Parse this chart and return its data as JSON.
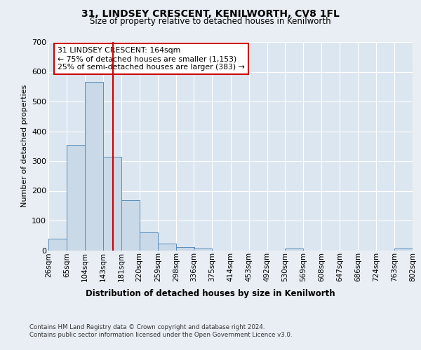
{
  "title1": "31, LINDSEY CRESCENT, KENILWORTH, CV8 1FL",
  "title2": "Size of property relative to detached houses in Kenilworth",
  "xlabel": "Distribution of detached houses by size in Kenilworth",
  "ylabel": "Number of detached properties",
  "footer1": "Contains HM Land Registry data © Crown copyright and database right 2024.",
  "footer2": "Contains public sector information licensed under the Open Government Licence v3.0.",
  "annotation_line1": "31 LINDSEY CRESCENT: 164sqm",
  "annotation_line2": "← 75% of detached houses are smaller (1,153)",
  "annotation_line3": "25% of semi-detached houses are larger (383) →",
  "bar_color": "#c9d9e8",
  "bar_edge_color": "#5b8db8",
  "red_line_x": 164,
  "bin_edges": [
    26,
    65,
    104,
    143,
    181,
    220,
    259,
    298,
    336,
    375,
    414,
    453,
    492,
    530,
    569,
    608,
    647,
    686,
    724,
    763,
    802
  ],
  "bin_labels": [
    "26sqm",
    "65sqm",
    "104sqm",
    "143sqm",
    "181sqm",
    "220sqm",
    "259sqm",
    "298sqm",
    "336sqm",
    "375sqm",
    "414sqm",
    "453sqm",
    "492sqm",
    "530sqm",
    "569sqm",
    "608sqm",
    "647sqm",
    "686sqm",
    "724sqm",
    "763sqm",
    "802sqm"
  ],
  "bar_heights": [
    40,
    355,
    565,
    315,
    168,
    60,
    22,
    10,
    5,
    0,
    0,
    0,
    0,
    5,
    0,
    0,
    0,
    0,
    0,
    5
  ],
  "ylim": [
    0,
    700
  ],
  "yticks": [
    0,
    100,
    200,
    300,
    400,
    500,
    600,
    700
  ],
  "background_color": "#e8eef4",
  "plot_bg_color": "#dce6f0",
  "grid_color": "#ffffff",
  "annotation_box_color": "#ffffff",
  "annotation_box_edge": "#cc0000"
}
